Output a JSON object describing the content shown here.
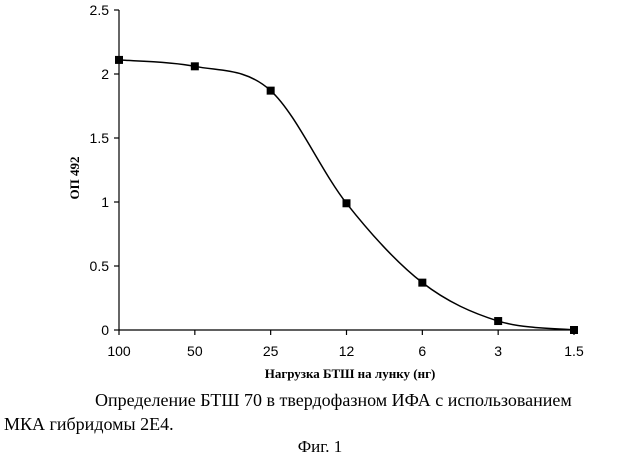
{
  "chart_data": {
    "type": "line",
    "title": "",
    "xlabel": "Нагрузка БТШ на лунку (нг)",
    "ylabel": "ОП 492",
    "categories": [
      "100",
      "50",
      "25",
      "12",
      "6",
      "3",
      "1.5"
    ],
    "series": [
      {
        "values": [
          2.11,
          2.06,
          1.87,
          0.99,
          0.37,
          0.07,
          0.0
        ],
        "marker": "square",
        "color": "#000000"
      }
    ],
    "ylim": [
      0,
      2.5
    ],
    "yticks": [
      "0",
      "0.5",
      "1",
      "1.5",
      "2",
      "2.5"
    ],
    "grid": false,
    "legend": "none"
  },
  "caption": {
    "line1": "Определение БТШ 70 в твердофазном ИФА с использованием",
    "line2": "МКА гибридомы 2Е4.",
    "figure_label": "Фиг. 1"
  }
}
